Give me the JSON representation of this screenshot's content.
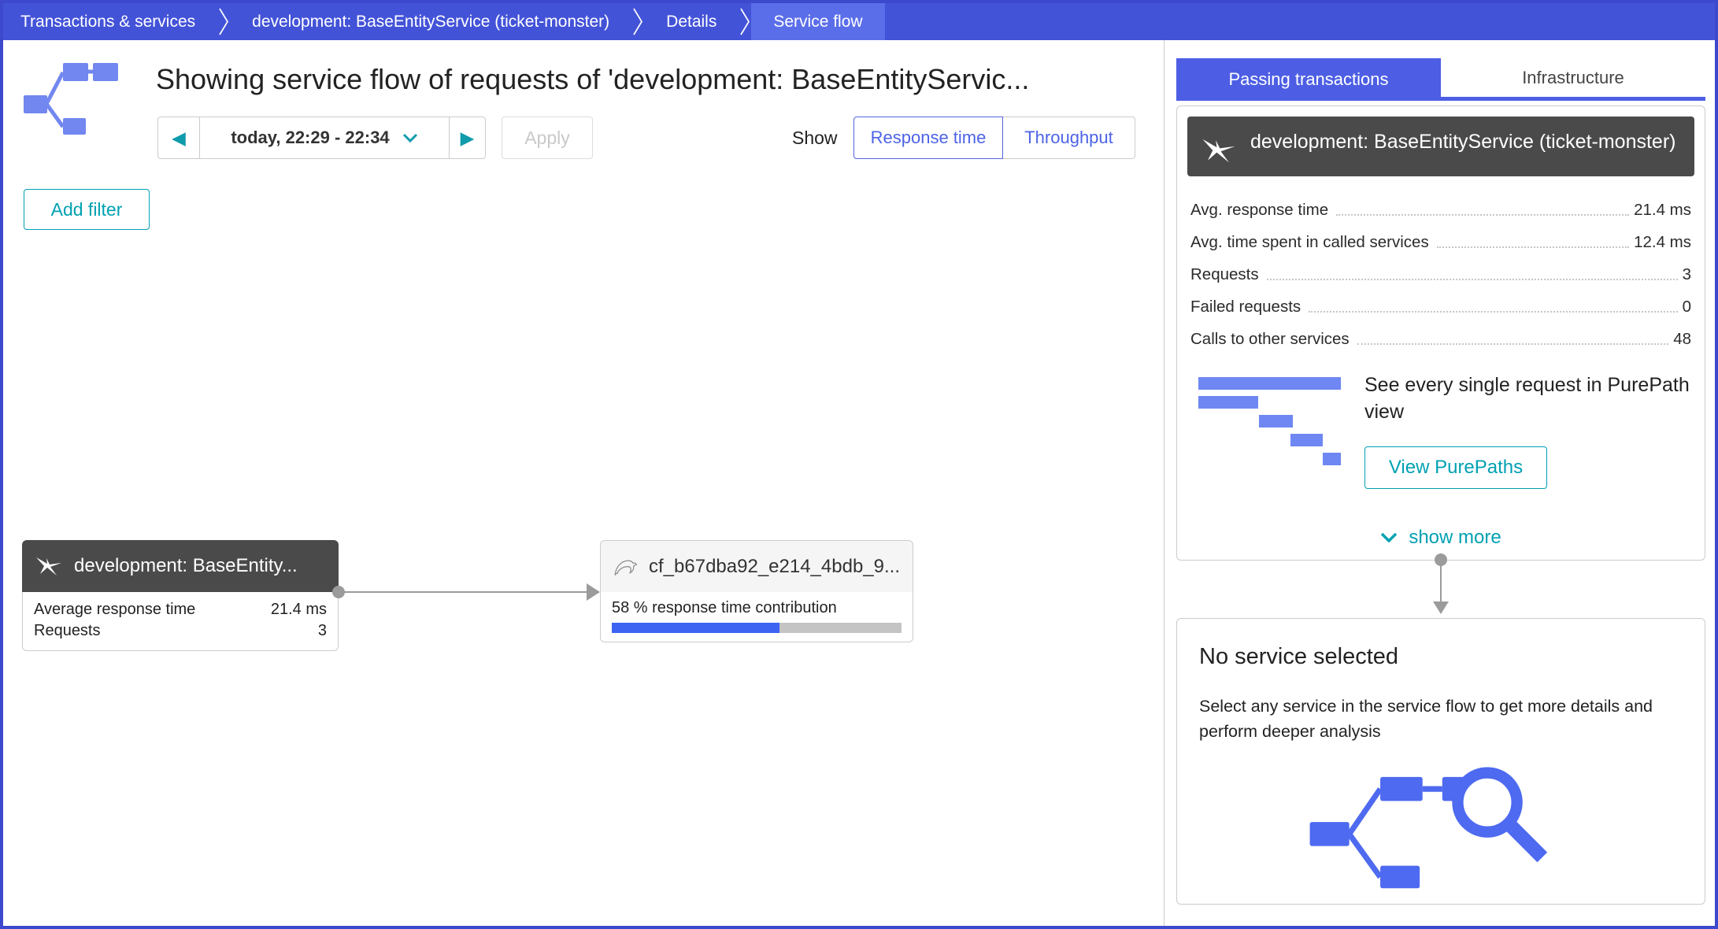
{
  "breadcrumb": {
    "items": [
      {
        "label": "Transactions & services"
      },
      {
        "label": "development: BaseEntityService (ticket-monster)"
      },
      {
        "label": "Details"
      },
      {
        "label": "Service flow"
      }
    ]
  },
  "main": {
    "title": "Showing service flow of requests of 'development: BaseEntityServic...",
    "toolbar": {
      "time_range": "today, 22:29 - 22:34",
      "apply_label": "Apply",
      "show_label": "Show",
      "response_time_label": "Response time",
      "throughput_label": "Throughput"
    },
    "add_filter_label": "Add filter",
    "flow": {
      "source_node": {
        "title": "development: BaseEntity...",
        "metrics": [
          {
            "label": "Average response time",
            "value": "21.4 ms"
          },
          {
            "label": "Requests",
            "value": "3"
          }
        ]
      },
      "target_node": {
        "title": "cf_b67dba92_e214_4bdb_9...",
        "contribution_label": "58 % response time contribution",
        "contribution_pct": 58
      }
    }
  },
  "sidebar": {
    "tabs": [
      {
        "label": "Passing transactions",
        "active": true
      },
      {
        "label": "Infrastructure",
        "active": false
      }
    ],
    "service_card": {
      "title": "development: BaseEntityService (ticket-monster)"
    },
    "stats": [
      {
        "label": "Avg. response time",
        "value": "21.4 ms"
      },
      {
        "label": "Avg. time spent in called services",
        "value": "12.4 ms"
      },
      {
        "label": "Requests",
        "value": "3"
      },
      {
        "label": "Failed requests",
        "value": "0"
      },
      {
        "label": "Calls to other services",
        "value": "48"
      }
    ],
    "purepath": {
      "text": "See every single request in PurePath view",
      "button_label": "View PurePaths"
    },
    "show_more_label": "show more",
    "no_service": {
      "title": "No service selected",
      "description": "Select any service in the service flow to get more details and perform deeper analysis"
    }
  },
  "colors": {
    "breadcrumb_blue": "#4353d8",
    "breadcrumb_active_blue": "#5b6ee9",
    "accent_blue": "#5264e2",
    "icon_blue": "#7287ef",
    "progress_blue": "#3d63f2",
    "teal": "#00a1b2",
    "dark_header": "#4a4a4a",
    "border_gray": "#cccccc",
    "edge_gray": "#9b9b9b"
  }
}
